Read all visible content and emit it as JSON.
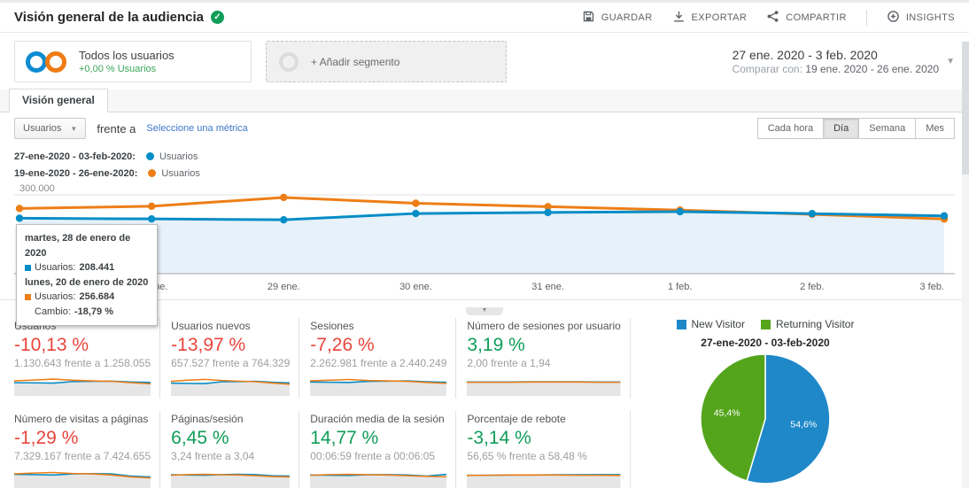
{
  "header": {
    "title": "Visión general de la audiencia",
    "actions": [
      {
        "label": "GUARDAR",
        "icon": "save-icon",
        "divider_before": false
      },
      {
        "label": "EXPORTAR",
        "icon": "export-icon",
        "divider_before": false
      },
      {
        "label": "COMPARTIR",
        "icon": "share-icon",
        "divider_before": false
      },
      {
        "label": "INSIGHTS",
        "icon": "insights-icon",
        "divider_before": true
      }
    ]
  },
  "segments": {
    "all_users": {
      "title": "Todos los usuarios",
      "subtitle": "+0,00 % Usuarios"
    },
    "add_segment": "+ Añadir segmento"
  },
  "date_range": {
    "primary": "27 ene. 2020 - 3 feb. 2020",
    "compare_prefix": "Comparar con:",
    "compare": "19 ene. 2020 - 26 ene. 2020"
  },
  "tab": "Visión general",
  "metric_selector": {
    "metric": "Usuarios",
    "vs_label": "frente a",
    "select_link": "Seleccione una métrica"
  },
  "granularity": {
    "options": [
      "Cada hora",
      "Día",
      "Semana",
      "Mes"
    ],
    "selected": "Día"
  },
  "legend": [
    {
      "range": "27-ene-2020 - 03-feb-2020:",
      "metric": "Usuarios",
      "color": "#058dc7"
    },
    {
      "range": "19-ene-2020 - 26-ene-2020:",
      "metric": "Usuarios",
      "color": "#ed7e17"
    }
  ],
  "tooltip": {
    "row1_date": "martes, 28 de enero de 2020",
    "row1_label": "Usuarios:",
    "row1_value": "208.441",
    "row2_date": "lunes, 20 de enero de 2020",
    "row2_label": "Usuarios:",
    "row2_value": "256.684",
    "change_label": "Cambio:",
    "change_value": "-18,79 %"
  },
  "chart_data": [
    {
      "type": "line",
      "x": [
        "27 ene.",
        "28 ene.",
        "29 ene.",
        "30 ene.",
        "31 ene.",
        "1 feb.",
        "2 feb.",
        "3 feb."
      ],
      "x_tick_labels": [
        "...",
        "28 ene.",
        "29 ene.",
        "30 ene.",
        "31 ene.",
        "1 feb.",
        "2 feb.",
        "3 feb."
      ],
      "series": [
        {
          "name": "Usuarios (27-ene-2020 - 03-feb-2020)",
          "color": "#058dc7",
          "area": "#e7f1f9",
          "values": [
            211000,
            208441,
            205000,
            229000,
            233000,
            236000,
            228500,
            220000
          ]
        },
        {
          "name": "Usuarios (19-ene-2020 - 26-ene-2020)",
          "color": "#ed7e17",
          "area": null,
          "values": [
            248000,
            256684,
            290000,
            268000,
            255000,
            242000,
            226000,
            208000
          ]
        }
      ],
      "ylim": [
        0,
        330000
      ],
      "gridline_value": 300000,
      "ytick_labels": [
        "300.000"
      ],
      "legend_position": "top-left",
      "grid": "single-horizontal"
    },
    {
      "type": "pie",
      "title": "27-ene-2020 - 03-feb-2020",
      "labels": [
        "New Visitor",
        "Returning Visitor"
      ],
      "values": [
        54.6,
        45.4
      ],
      "display_labels": [
        "54,6%",
        "45,4%"
      ],
      "colors": [
        "#1e88c9",
        "#55a51c"
      ],
      "legend_position": "top"
    }
  ],
  "metrics": {
    "cards": [
      {
        "label": "Usuarios",
        "delta": "-10,13 %",
        "tone": "red",
        "comparison": "1.130.643 frente a 1.258.055",
        "spark": {
          "blue": [
            52,
            51,
            50,
            57,
            58,
            59,
            55,
            53
          ],
          "orange": [
            60,
            64,
            68,
            63,
            60,
            58,
            52,
            47
          ]
        }
      },
      {
        "label": "Usuarios nuevos",
        "delta": "-13,97 %",
        "tone": "red",
        "comparison": "657.527 frente a 764.329",
        "spark": {
          "blue": [
            50,
            49,
            48,
            56,
            57,
            58,
            54,
            51
          ],
          "orange": [
            58,
            63,
            67,
            62,
            59,
            56,
            50,
            45
          ]
        }
      },
      {
        "label": "Sesiones",
        "delta": "-7,26 %",
        "tone": "red",
        "comparison": "2.262.981 frente a 2.440.249",
        "spark": {
          "blue": [
            55,
            54,
            53,
            58,
            59,
            60,
            56,
            54
          ],
          "orange": [
            60,
            63,
            66,
            62,
            60,
            58,
            53,
            49
          ]
        }
      },
      {
        "label": "Número de sesiones por usuario",
        "delta": "3,19 %",
        "tone": "green",
        "comparison": "2,00 frente a 1,94",
        "spark": {
          "blue": [
            55,
            55,
            55,
            56,
            56,
            56,
            55,
            55
          ],
          "orange": [
            54,
            54,
            54,
            55,
            55,
            55,
            54,
            54
          ]
        }
      },
      {
        "label": "Número de visitas a páginas",
        "delta": "-1,29 %",
        "tone": "red",
        "comparison": "7.329.167 frente a 7.424.655",
        "spark": {
          "blue": [
            58,
            57,
            55,
            60,
            61,
            60,
            50,
            46
          ],
          "orange": [
            60,
            64,
            66,
            62,
            60,
            55,
            46,
            42
          ]
        }
      },
      {
        "label": "Páginas/sesión",
        "delta": "6,45 %",
        "tone": "green",
        "comparison": "3,24 frente a 3,04",
        "spark": {
          "blue": [
            56,
            55,
            54,
            57,
            58,
            57,
            52,
            50
          ],
          "orange": [
            54,
            57,
            58,
            56,
            55,
            52,
            48,
            46
          ]
        }
      },
      {
        "label": "Duración media de la sesión",
        "delta": "14,77 %",
        "tone": "green",
        "comparison": "00:06:59 frente a 00:06:05",
        "spark": {
          "blue": [
            55,
            54,
            53,
            56,
            57,
            55,
            50,
            58
          ],
          "orange": [
            54,
            57,
            58,
            56,
            55,
            52,
            49,
            47
          ]
        }
      },
      {
        "label": "Porcentaje de rebote",
        "delta": "-3,14 %",
        "tone": "green",
        "comparison": "56,65 % frente a 58,48 %",
        "spark": {
          "blue": [
            54,
            54,
            55,
            55,
            56,
            56,
            57,
            57
          ],
          "orange": [
            53,
            54,
            55,
            55,
            55,
            54,
            54,
            53
          ]
        }
      }
    ]
  },
  "pie": {
    "title": "27-ene-2020 - 03-feb-2020",
    "legend": [
      {
        "label": "New Visitor",
        "color": "#1e88c9"
      },
      {
        "label": "Returning Visitor",
        "color": "#55a51c"
      }
    ]
  }
}
